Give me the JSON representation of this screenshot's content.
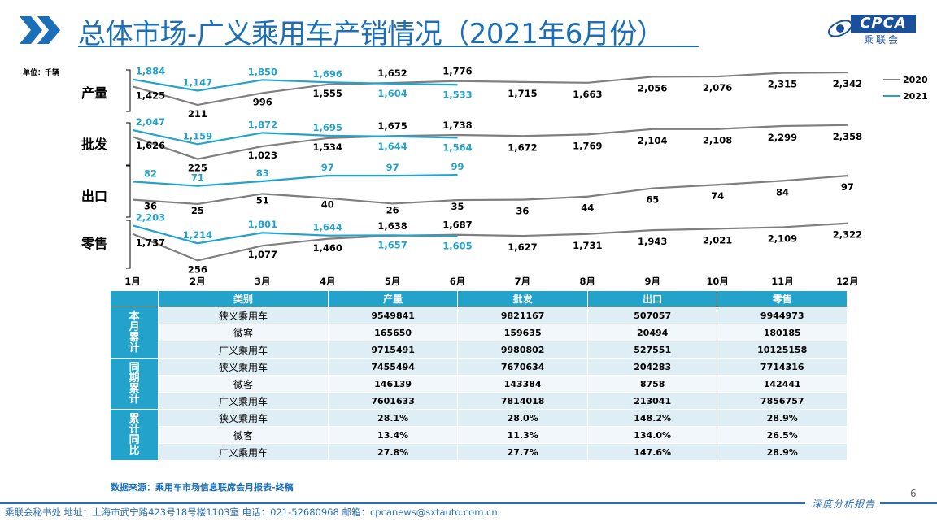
{
  "header": {
    "title": "总体市场-广义乘用车产销情况（2021年6月份）",
    "logo_text": "CPCA",
    "logo_sub": "乘联会",
    "accent_color": "#1b6fb8"
  },
  "unit_label": "单位：千辆",
  "legend": [
    {
      "name": "2020",
      "color": "#7f7f7f"
    },
    {
      "name": "2021",
      "color": "#23a3cb"
    }
  ],
  "chart_data": {
    "type": "line",
    "categories": [
      "1月",
      "2月",
      "3月",
      "4月",
      "5月",
      "6月",
      "7月",
      "8月",
      "9月",
      "10月",
      "11月",
      "12月"
    ],
    "panels": [
      {
        "label": "产量",
        "series": [
          {
            "name": "2020",
            "values": [
              1425,
              211,
              996,
              1555,
              1652,
              1776,
              1715,
              1663,
              2056,
              2076,
              2315,
              2342
            ]
          },
          {
            "name": "2021",
            "values": [
              1884,
              1147,
              1850,
              1696,
              1604,
              1533
            ]
          }
        ]
      },
      {
        "label": "批发",
        "series": [
          {
            "name": "2020",
            "values": [
              1626,
              225,
              1023,
              1534,
              1675,
              1738,
              1672,
              1769,
              2104,
              2108,
              2299,
              2358
            ]
          },
          {
            "name": "2021",
            "values": [
              2047,
              1159,
              1872,
              1695,
              1644,
              1564
            ]
          }
        ]
      },
      {
        "label": "出口",
        "series": [
          {
            "name": "2020",
            "values": [
              36,
              25,
              51,
              40,
              26,
              35,
              36,
              44,
              65,
              74,
              84,
              97
            ]
          },
          {
            "name": "2021",
            "values": [
              82,
              71,
              83,
              97,
              97,
              99
            ]
          }
        ]
      },
      {
        "label": "零售",
        "series": [
          {
            "name": "2020",
            "values": [
              1737,
              256,
              1077,
              1460,
              1638,
              1687,
              1627,
              1731,
              1943,
              2021,
              2109,
              2322
            ]
          },
          {
            "name": "2021",
            "values": [
              2203,
              1214,
              1801,
              1644,
              1657,
              1605
            ]
          }
        ]
      }
    ],
    "value_labels": [
      [
        "1,425",
        "211",
        "996",
        "1,555",
        "1,652",
        "1,776",
        "1,715",
        "1,663",
        "2,056",
        "2,076",
        "2,315",
        "2,342"
      ],
      [
        "1,884",
        "1,147",
        "1,850",
        "1,696",
        "1,604",
        "1,533"
      ],
      [
        "1,626",
        "225",
        "1,023",
        "1,534",
        "1,675",
        "1,738",
        "1,672",
        "1,769",
        "2,104",
        "2,108",
        "2,299",
        "2,358"
      ],
      [
        "2,047",
        "1,159",
        "1,872",
        "1,695",
        "1,644",
        "1,564"
      ],
      [
        "36",
        "25",
        "51",
        "40",
        "26",
        "35",
        "36",
        "44",
        "65",
        "74",
        "84",
        "97"
      ],
      [
        "82",
        "71",
        "83",
        "97",
        "97",
        "99"
      ],
      [
        "1,737",
        "256",
        "1,077",
        "1,460",
        "1,638",
        "1,687",
        "1,627",
        "1,731",
        "1,943",
        "2,021",
        "2,109",
        "2,322"
      ],
      [
        "2,203",
        "1,214",
        "1,801",
        "1,644",
        "1,657",
        "1,605"
      ]
    ]
  },
  "table": {
    "headers": [
      "类别",
      "产量",
      "批发",
      "出口",
      "零售"
    ],
    "groups": [
      {
        "label": "本月累计",
        "rows": [
          [
            "狭义乘用车",
            "9549841",
            "9821167",
            "507057",
            "9944973"
          ],
          [
            "微客",
            "165650",
            "159635",
            "20494",
            "180185"
          ],
          [
            "广义乘用车",
            "9715491",
            "9980802",
            "527551",
            "10125158"
          ]
        ]
      },
      {
        "label": "同期累计",
        "rows": [
          [
            "狭义乘用车",
            "7455494",
            "7670634",
            "204283",
            "7714316"
          ],
          [
            "微客",
            "146139",
            "143384",
            "8758",
            "142441"
          ],
          [
            "广义乘用车",
            "7601633",
            "7814018",
            "213041",
            "7856757"
          ]
        ]
      },
      {
        "label": "累计同比",
        "rows": [
          [
            "狭义乘用车",
            "28.1%",
            "28.0%",
            "148.2%",
            "28.9%"
          ],
          [
            "微客",
            "13.4%",
            "11.3%",
            "134.0%",
            "26.5%"
          ],
          [
            "广义乘用车",
            "27.8%",
            "27.7%",
            "147.6%",
            "28.9%"
          ]
        ]
      }
    ]
  },
  "source": "数据来源：乘用车市场信息联席会月报表-终稿",
  "page_number": "6",
  "footer_right": "深度分析报告",
  "footer": "乘联会秘书处   地址：上海市武宁路423号18号楼1103室  电话：021-52680968   邮箱：cpcanews@sxtauto.com.cn"
}
